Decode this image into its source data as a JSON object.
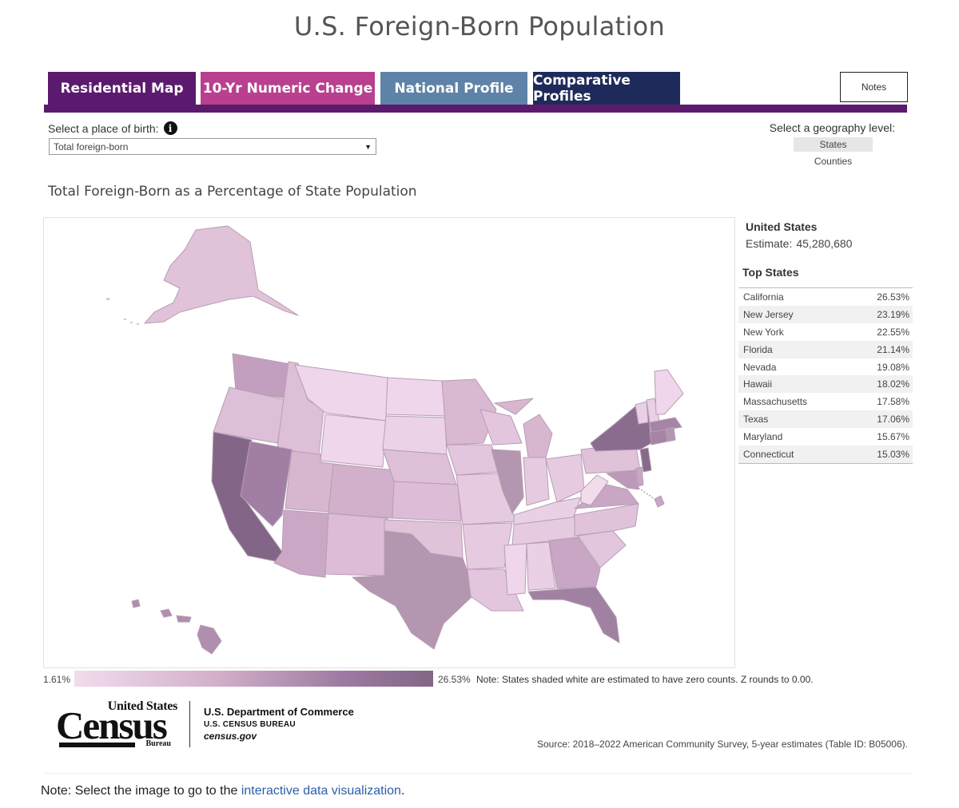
{
  "page": {
    "title": "U.S. Foreign-Born Population"
  },
  "tabs": [
    {
      "label": "Residential Map",
      "color": "#5c1a6e",
      "active": true
    },
    {
      "label": "10-Yr Numeric Change",
      "color": "#b8408e"
    },
    {
      "label": "National Profile",
      "color": "#5f83a8"
    },
    {
      "label": "Comparative Profiles",
      "color": "#1e2a5a"
    }
  ],
  "notes_button": "Notes",
  "controls": {
    "place_of_birth_label": "Select a place of birth:",
    "place_of_birth_value": "Total foreign-born",
    "geography_label": "Select a geography level:",
    "geography_options": [
      "States",
      "Counties"
    ],
    "geography_selected": "States"
  },
  "map": {
    "title": "Total Foreign-Born as a Percentage of State Population",
    "fill_scale": [
      "#f2dcec",
      "#836587"
    ]
  },
  "summary": {
    "name": "United States",
    "estimate_label": "Estimate:",
    "estimate_value": "45,280,680"
  },
  "top_states": {
    "heading": "Top States",
    "rows": [
      {
        "state": "California",
        "pct": "26.53%"
      },
      {
        "state": "New Jersey",
        "pct": "23.19%"
      },
      {
        "state": "New York",
        "pct": "22.55%"
      },
      {
        "state": "Florida",
        "pct": "21.14%"
      },
      {
        "state": "Nevada",
        "pct": "19.08%"
      },
      {
        "state": "Hawaii",
        "pct": "18.02%"
      },
      {
        "state": "Massachusetts",
        "pct": "17.58%"
      },
      {
        "state": "Texas",
        "pct": "17.06%"
      },
      {
        "state": "Maryland",
        "pct": "15.67%"
      },
      {
        "state": "Connecticut",
        "pct": "15.03%"
      }
    ]
  },
  "legend": {
    "min": "1.61%",
    "max": "26.53%",
    "note": "Note: States shaded white are estimated to have zero counts. Z rounds to 0.00."
  },
  "branding": {
    "logo_top": "United States",
    "logo_main": "Census",
    "logo_bureau": "Bureau",
    "dept": "U.S. Department of Commerce",
    "bureau": "U.S. CENSUS BUREAU",
    "site": "census.gov"
  },
  "source": "Source: 2018–2022 American Community Survey, 5-year estimates (Table ID: B05006).",
  "footer": {
    "prefix": "Note: Select the image to go to the ",
    "link": "interactive data visualization",
    "suffix": "."
  },
  "colors": {
    "accent": "#5c1a6e",
    "link": "#2a5fa8"
  }
}
